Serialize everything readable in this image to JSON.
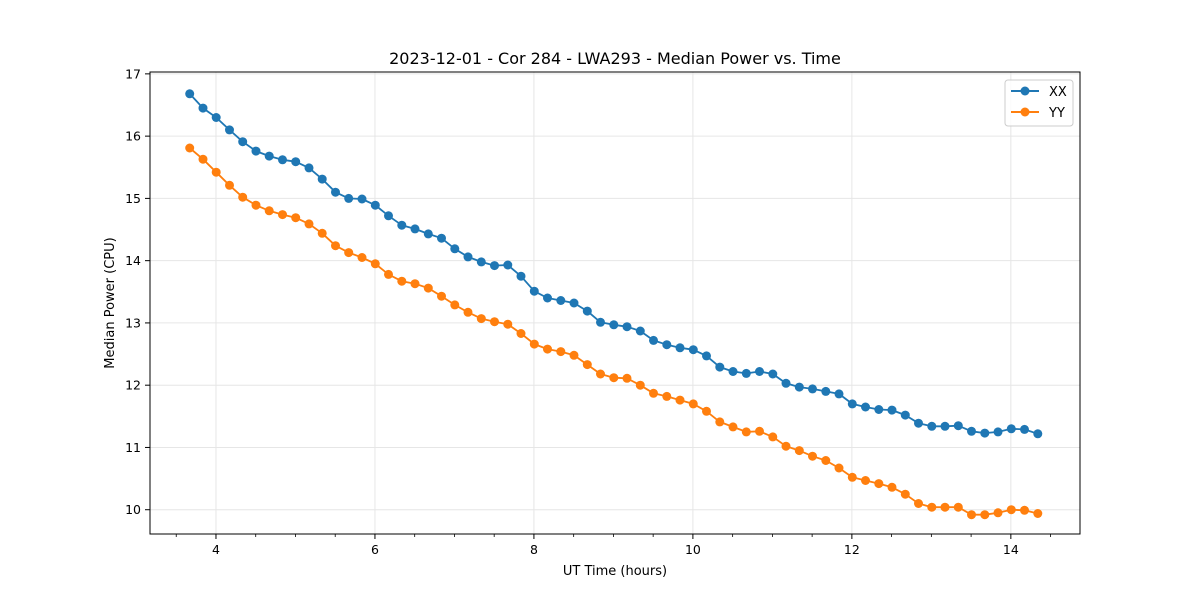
{
  "chart_data": {
    "type": "line",
    "title": "2023-12-01 - Cor 284 - LWA293 - Median Power vs. Time",
    "xlabel": "UT Time (hours)",
    "ylabel": "Median Power (CPU)",
    "xlim": [
      3.17,
      14.87
    ],
    "ylim": [
      9.61,
      17.03
    ],
    "xticks": [
      4,
      6,
      8,
      10,
      12,
      14
    ],
    "xtick_labels": [
      "4",
      "6",
      "8",
      "10",
      "12",
      "14"
    ],
    "xminor_step": 0.5,
    "yticks": [
      10,
      11,
      12,
      13,
      14,
      15,
      16,
      17
    ],
    "ytick_labels": [
      "10",
      "11",
      "12",
      "13",
      "14",
      "15",
      "16",
      "17"
    ],
    "grid": true,
    "legend_position": "top-right",
    "x_start": 3.67,
    "x_step": 0.1667,
    "series": [
      {
        "name": "XX",
        "color": "#1f77b4",
        "values": [
          16.68,
          16.45,
          16.3,
          16.1,
          15.91,
          15.76,
          15.68,
          15.62,
          15.59,
          15.49,
          15.31,
          15.1,
          15.0,
          14.99,
          14.89,
          14.72,
          14.57,
          14.51,
          14.43,
          14.36,
          14.19,
          14.06,
          13.98,
          13.92,
          13.93,
          13.75,
          13.51,
          13.4,
          13.36,
          13.32,
          13.19,
          13.01,
          12.97,
          12.94,
          12.87,
          12.72,
          12.65,
          12.6,
          12.57,
          12.47,
          12.29,
          12.22,
          12.19,
          12.22,
          12.18,
          12.03,
          11.97,
          11.94,
          11.9,
          11.86,
          11.7,
          11.65,
          11.61,
          11.6,
          11.52,
          11.39,
          11.34,
          11.34,
          11.35,
          11.26,
          11.23,
          11.25,
          11.3,
          11.29,
          11.22
        ]
      },
      {
        "name": "YY",
        "color": "#ff7f0e",
        "values": [
          15.81,
          15.63,
          15.42,
          15.21,
          15.02,
          14.89,
          14.8,
          14.74,
          14.69,
          14.59,
          14.44,
          14.24,
          14.13,
          14.05,
          13.95,
          13.78,
          13.67,
          13.63,
          13.56,
          13.43,
          13.29,
          13.17,
          13.07,
          13.02,
          12.98,
          12.83,
          12.66,
          12.58,
          12.54,
          12.48,
          12.33,
          12.18,
          12.12,
          12.11,
          12.0,
          11.87,
          11.82,
          11.76,
          11.7,
          11.58,
          11.41,
          11.33,
          11.25,
          11.26,
          11.17,
          11.02,
          10.95,
          10.86,
          10.79,
          10.67,
          10.52,
          10.47,
          10.42,
          10.36,
          10.25,
          10.1,
          10.04,
          10.04,
          10.04,
          9.92,
          9.92,
          9.95,
          10.0,
          9.99,
          9.94
        ]
      }
    ]
  }
}
